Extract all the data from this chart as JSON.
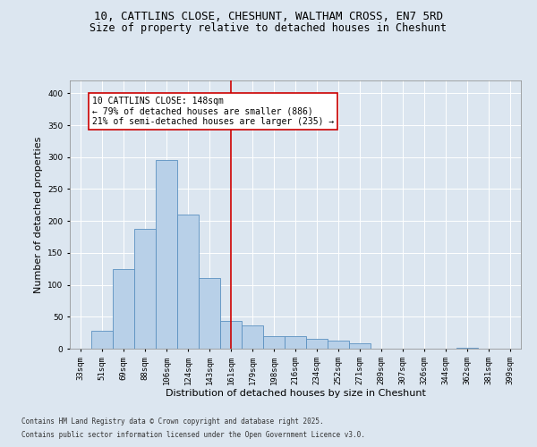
{
  "title_line1": "10, CATTLINS CLOSE, CHESHUNT, WALTHAM CROSS, EN7 5RD",
  "title_line2": "Size of property relative to detached houses in Cheshunt",
  "xlabel": "Distribution of detached houses by size in Cheshunt",
  "ylabel": "Number of detached properties",
  "categories": [
    "33sqm",
    "51sqm",
    "69sqm",
    "88sqm",
    "106sqm",
    "124sqm",
    "143sqm",
    "161sqm",
    "179sqm",
    "198sqm",
    "216sqm",
    "234sqm",
    "252sqm",
    "271sqm",
    "289sqm",
    "307sqm",
    "326sqm",
    "344sqm",
    "362sqm",
    "381sqm",
    "399sqm"
  ],
  "values": [
    0,
    28,
    125,
    188,
    295,
    210,
    110,
    44,
    37,
    20,
    20,
    15,
    13,
    9,
    0,
    0,
    0,
    0,
    2,
    0,
    0
  ],
  "bar_color": "#b8d0e8",
  "bar_edge_color": "#5a90c0",
  "annotation_text": "10 CATTLINS CLOSE: 148sqm\n← 79% of detached houses are smaller (886)\n21% of semi-detached houses are larger (235) →",
  "annotation_box_color": "#ffffff",
  "annotation_box_edge": "#cc0000",
  "annotation_text_color": "#000000",
  "red_line_color": "#cc0000",
  "ylim": [
    0,
    420
  ],
  "yticks": [
    0,
    50,
    100,
    150,
    200,
    250,
    300,
    350,
    400
  ],
  "background_color": "#dce6f0",
  "plot_bg_color": "#dce6f0",
  "footer_line1": "Contains HM Land Registry data © Crown copyright and database right 2025.",
  "footer_line2": "Contains public sector information licensed under the Open Government Licence v3.0.",
  "title_fontsize": 9,
  "subtitle_fontsize": 8.5,
  "tick_fontsize": 6.5,
  "xlabel_fontsize": 8,
  "ylabel_fontsize": 8,
  "annotation_fontsize": 7,
  "footer_fontsize": 5.5
}
